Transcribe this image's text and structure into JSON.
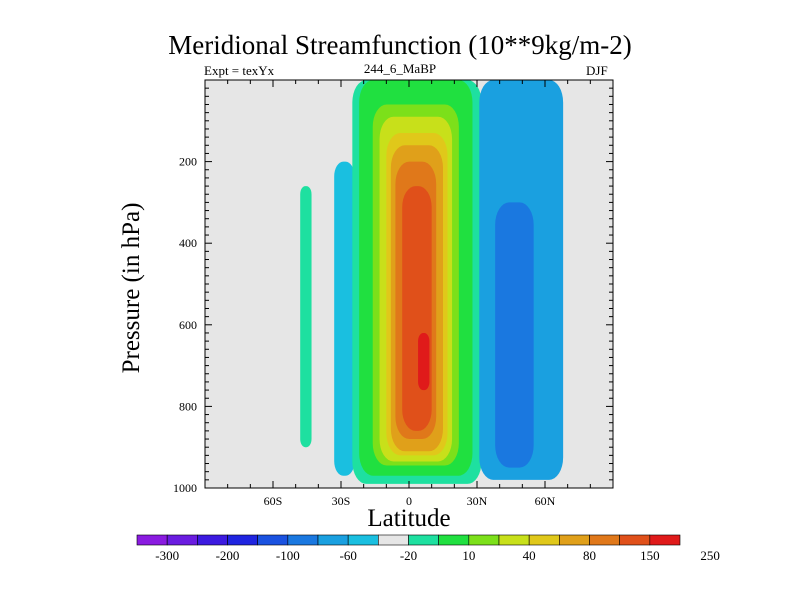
{
  "chart_data": {
    "type": "heatmap",
    "title": "Meridional Streamfunction (10**9kg/m-2)",
    "subtitle_left": "Expt = texYx",
    "subtitle_center": "244_6_MaBP",
    "subtitle_right": "DJF",
    "xlabel": "Latitude",
    "ylabel": "Pressure (in hPa)",
    "xlim": [
      -90,
      90
    ],
    "ylim": [
      1000,
      0
    ],
    "x_ticks": [
      {
        "value": -60,
        "label": "60S"
      },
      {
        "value": -30,
        "label": "30S"
      },
      {
        "value": 0,
        "label": "0"
      },
      {
        "value": 30,
        "label": "30N"
      },
      {
        "value": 60,
        "label": "60N"
      }
    ],
    "y_ticks": [
      {
        "value": 200,
        "label": "200"
      },
      {
        "value": 400,
        "label": "400"
      },
      {
        "value": 600,
        "label": "600"
      },
      {
        "value": 800,
        "label": "800"
      },
      {
        "value": 1000,
        "label": "1000"
      }
    ],
    "colorbar": {
      "labels": [
        "-300",
        "-200",
        "-100",
        "-60",
        "-20",
        "10",
        "40",
        "80",
        "150",
        "250"
      ],
      "colors": [
        "#8a1be0",
        "#6a1ce0",
        "#3c1ae0",
        "#1f24e0",
        "#1a52e0",
        "#1a78e0",
        "#1aa0e0",
        "#1abfe0",
        "#e6e6e6",
        "#1ee0a0",
        "#20e040",
        "#7ce01a",
        "#c8e01a",
        "#e0c81a",
        "#e0a01a",
        "#e0781a",
        "#e0501a",
        "#e01a1a"
      ]
    },
    "background_color": "#e6e6e6",
    "regions": [
      {
        "level": "-40",
        "color": "#1abfe0",
        "lat_min": -33,
        "lat_max": -24,
        "p_min": 200,
        "p_max": 970
      },
      {
        "level": "20",
        "color": "#1ee0a0",
        "lat_min": -48,
        "lat_max": -43,
        "p_min": 260,
        "p_max": 900
      },
      {
        "level": "20",
        "color": "#1ee0a0",
        "lat_min": -25,
        "lat_max": 32,
        "p_min": 0,
        "p_max": 990
      },
      {
        "level": "40",
        "color": "#20e040",
        "lat_min": -22,
        "lat_max": 28,
        "p_min": 0,
        "p_max": 970
      },
      {
        "level": "60",
        "color": "#7ce01a",
        "lat_min": -16,
        "lat_max": 22,
        "p_min": 60,
        "p_max": 945
      },
      {
        "level": "80",
        "color": "#c8e01a",
        "lat_min": -13,
        "lat_max": 19,
        "p_min": 90,
        "p_max": 935
      },
      {
        "level": "100",
        "color": "#e0c81a",
        "lat_min": -10,
        "lat_max": 17,
        "p_min": 130,
        "p_max": 920
      },
      {
        "level": "125",
        "color": "#e0a01a",
        "lat_min": -8,
        "lat_max": 15,
        "p_min": 160,
        "p_max": 910
      },
      {
        "level": "150",
        "color": "#e0781a",
        "lat_min": -6,
        "lat_max": 12,
        "p_min": 200,
        "p_max": 880
      },
      {
        "level": "200",
        "color": "#e0501a",
        "lat_min": -3,
        "lat_max": 10,
        "p_min": 260,
        "p_max": 860
      },
      {
        "level": "250",
        "color": "#e01a1a",
        "lat_min": 4,
        "lat_max": 9,
        "p_min": 620,
        "p_max": 760
      },
      {
        "level": "-20",
        "color": "#1aa0e0",
        "lat_min": 31,
        "lat_max": 68,
        "p_min": 0,
        "p_max": 980
      },
      {
        "level": "-40",
        "color": "#1a78e0",
        "lat_min": 38,
        "lat_max": 55,
        "p_min": 300,
        "p_max": 950
      }
    ]
  }
}
